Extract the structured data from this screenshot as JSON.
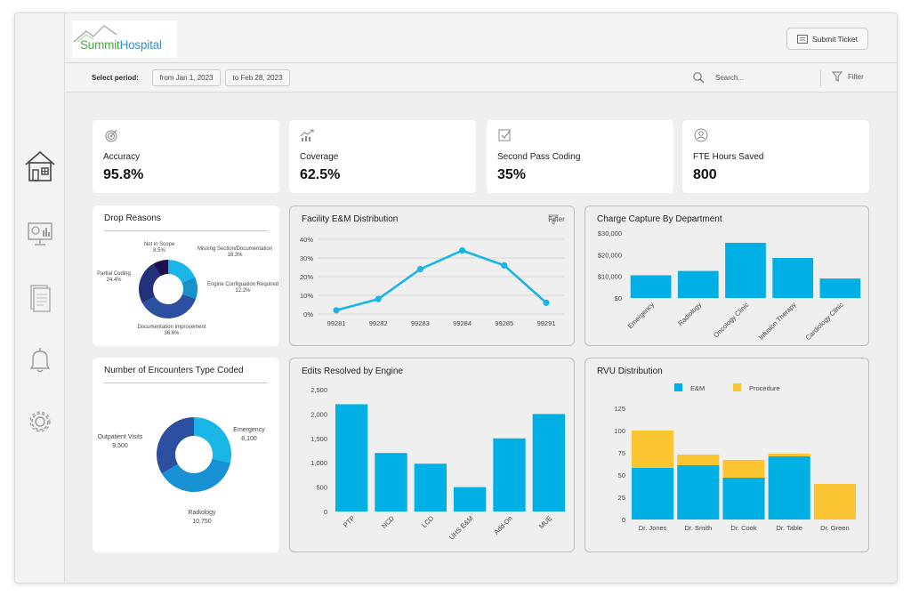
{
  "brand": {
    "name_part1": "Summit",
    "name_part2": "Hospital"
  },
  "header": {
    "submit_ticket_label": "Submit Ticket"
  },
  "filterbar": {
    "period_label": "Select period:",
    "from_date": "from Jan 1, 2023",
    "to_date": "to Feb 28, 2023",
    "search_placeholder": "Search...",
    "filter_label": "Filter"
  },
  "sidebar": {
    "items": [
      {
        "icon": "home-icon",
        "active": true
      },
      {
        "icon": "dashboard-monitor-icon",
        "active": false
      },
      {
        "icon": "document-icon",
        "active": false
      },
      {
        "icon": "bell-icon",
        "active": false
      },
      {
        "icon": "gear-icon",
        "active": false
      }
    ]
  },
  "kpis": [
    {
      "label": "Accuracy",
      "value": "95.8%",
      "icon": "target-icon"
    },
    {
      "label": "Coverage",
      "value": "62.5%",
      "icon": "growth-chart-icon"
    },
    {
      "label": "Second Pass Coding",
      "value": "35%",
      "icon": "checkbox-icon"
    },
    {
      "label": "FTE Hours Saved",
      "value": "800",
      "icon": "person-icon"
    }
  ],
  "drop_reasons": {
    "title": "Drop Reasons",
    "slices": [
      {
        "label": "Missing Section/Documentation",
        "pct_label": "18.3%",
        "value": 18.3,
        "color": "#19b5e6"
      },
      {
        "label": "Engine Configuation Required",
        "pct_label": "12.2%",
        "value": 12.2,
        "color": "#1791cc"
      },
      {
        "label": "Documentation Improvement",
        "pct_label": "36.6%",
        "value": 36.6,
        "color": "#2c4fa0"
      },
      {
        "label": "Partial Coding",
        "pct_label": "24.4%",
        "value": 24.4,
        "color": "#24307a"
      },
      {
        "label": "Not in Scope",
        "pct_label": "8.5%",
        "value": 8.5,
        "color": "#1c1250"
      }
    ]
  },
  "encounters": {
    "title": "Number of Encounters Type Coded",
    "slices": [
      {
        "label": "Emergency",
        "value_label": "8,100",
        "value": 8100,
        "color": "#19b5e6"
      },
      {
        "label": "Radiology",
        "value_label": "10,750",
        "value": 10750,
        "color": "#1790d4"
      },
      {
        "label": "Outpatient Visits",
        "value_label": "9,500",
        "value": 9500,
        "color": "#2c4fa0"
      }
    ]
  },
  "facility_em": {
    "title": "Facility E&M Distribution",
    "filter_label": "Filter"
  },
  "charge_capture": {
    "title": "Charge Capture By Department"
  },
  "edits_resolved": {
    "title": "Edits Resolved by Engine"
  },
  "rvu": {
    "title": "RVU Distribution",
    "legend": [
      {
        "name": "E&M",
        "color": "#00b0e4"
      },
      {
        "name": "Procedure",
        "color": "#fbc531"
      }
    ]
  },
  "chart_data": [
    {
      "type": "line",
      "title": "Facility E&M Distribution",
      "categories": [
        "99281",
        "99282",
        "99283",
        "99284",
        "99285",
        "99291"
      ],
      "values": [
        2,
        8,
        24,
        34,
        26,
        6
      ],
      "ylim": [
        0,
        40
      ],
      "yticks": [
        "0%",
        "10%",
        "20%",
        "30%",
        "40%"
      ],
      "color": "#19b5e6",
      "grid": true
    },
    {
      "type": "bar",
      "title": "Charge Capture By Department",
      "categories": [
        "Emergency",
        "Radiology",
        "Oncology Clinic",
        "Infusion Therapy",
        "Cardiology Clinic"
      ],
      "values": [
        10500,
        12500,
        25500,
        18500,
        9000
      ],
      "ylim": [
        0,
        30000
      ],
      "yticks": [
        "$0",
        "$10,000",
        "$20,000",
        "$30,000"
      ],
      "color": "#00b0e4"
    },
    {
      "type": "bar",
      "title": "Edits Resolved by Engine",
      "categories": [
        "PTP",
        "NCD",
        "LCD",
        "UHS E&M",
        "Add-On",
        "MUE"
      ],
      "values": [
        2200,
        1200,
        980,
        500,
        1500,
        2000
      ],
      "ylim": [
        0,
        2500
      ],
      "yticks": [
        "0",
        "500",
        "1,000",
        "1,500",
        "2,000",
        "2,500"
      ],
      "color": "#00b0e4"
    },
    {
      "type": "bar",
      "title": "RVU Distribution",
      "stacked": true,
      "categories": [
        "Dr. Jones",
        "Dr. Smith",
        "Dr. Cook",
        "Dr. Table",
        "Dr. Green"
      ],
      "series": [
        {
          "name": "E&M",
          "values": [
            58,
            61,
            47,
            71,
            0
          ],
          "color": "#00b0e4"
        },
        {
          "name": "Procedure",
          "values": [
            42,
            12,
            20,
            3,
            40
          ],
          "color": "#fbc531"
        }
      ],
      "ylim": [
        0,
        125
      ],
      "yticks": [
        "0",
        "25",
        "50",
        "75",
        "100",
        "125"
      ],
      "legend": "top-center"
    }
  ]
}
